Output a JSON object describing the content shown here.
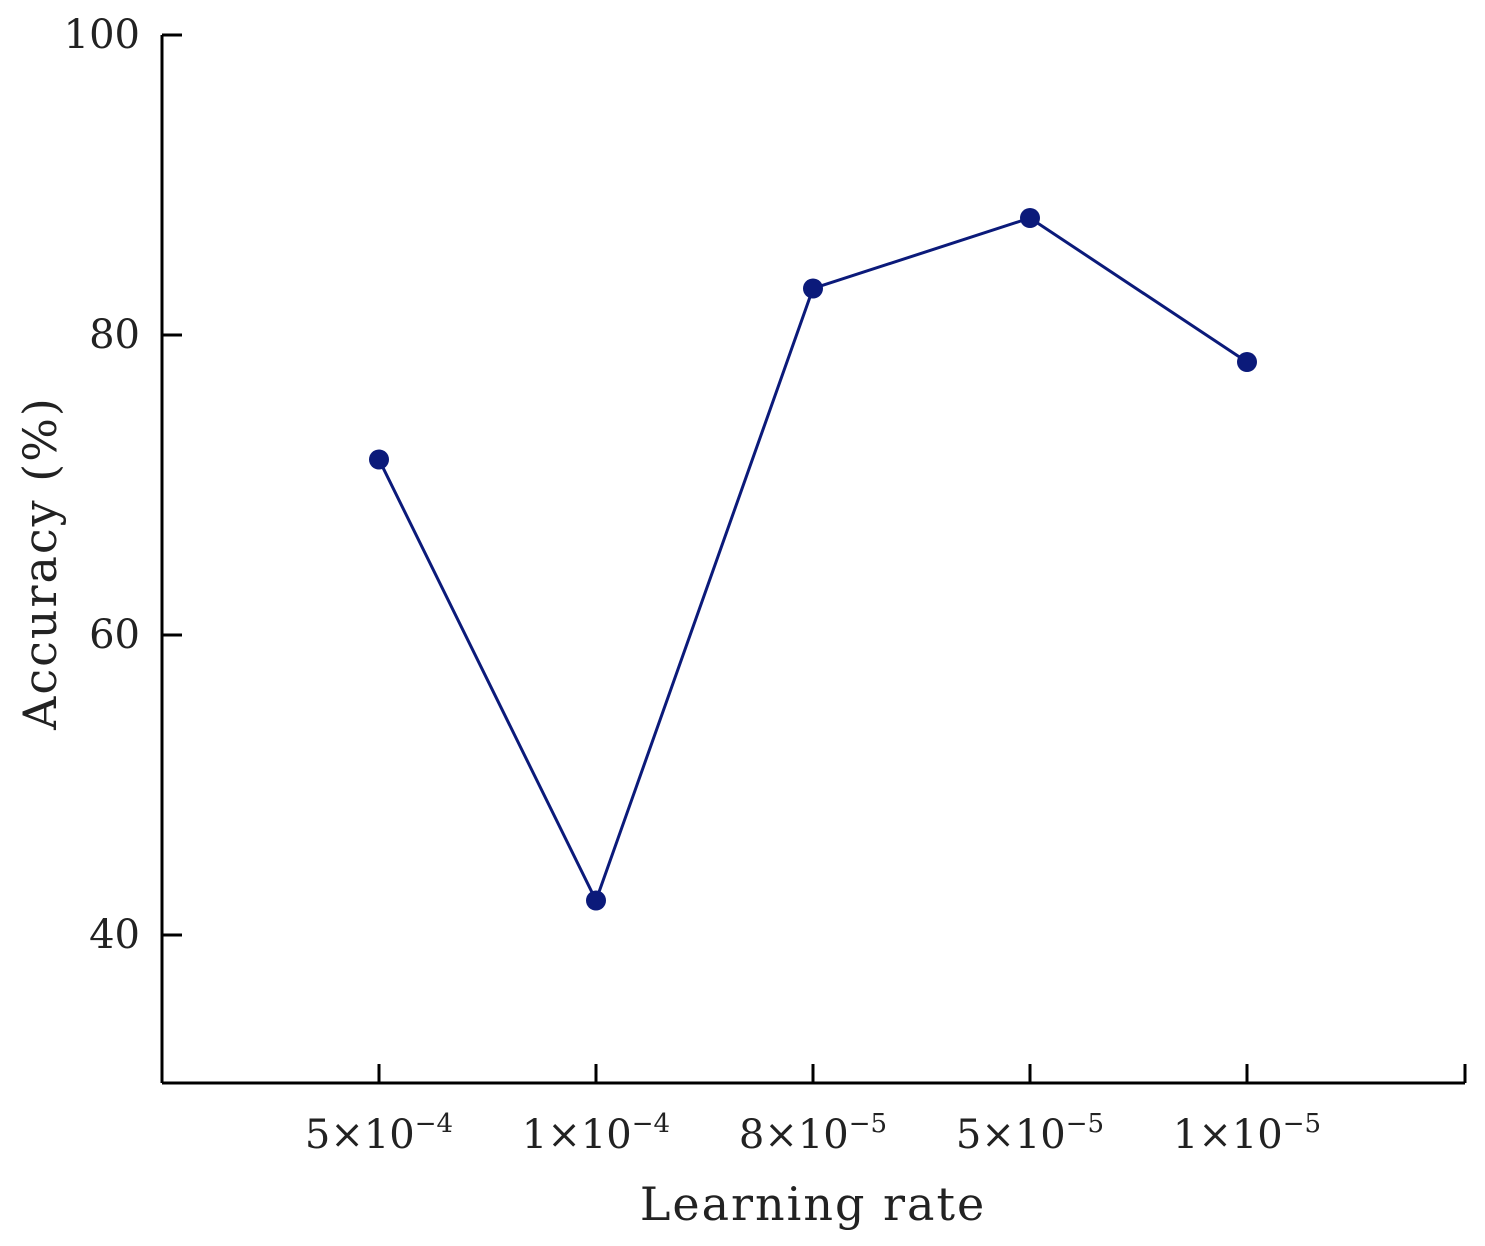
{
  "chart_data": {
    "type": "line",
    "xlabel": "Learning rate",
    "ylabel": "Accuracy (%)",
    "categories": [
      {
        "base": "5×10",
        "exp": "−4"
      },
      {
        "base": "1×10",
        "exp": "−4"
      },
      {
        "base": "8×10",
        "exp": "−5"
      },
      {
        "base": "5×10",
        "exp": "−5"
      },
      {
        "base": "1×10",
        "exp": "−5"
      }
    ],
    "series": [
      {
        "values": [
          71.7,
          42.3,
          83.1,
          87.8,
          78.2
        ],
        "color": "#0b1a7a"
      }
    ],
    "ylim": [
      30,
      100
    ],
    "yticks": [
      40,
      60,
      80,
      100
    ],
    "grid": false,
    "legend": "none"
  }
}
